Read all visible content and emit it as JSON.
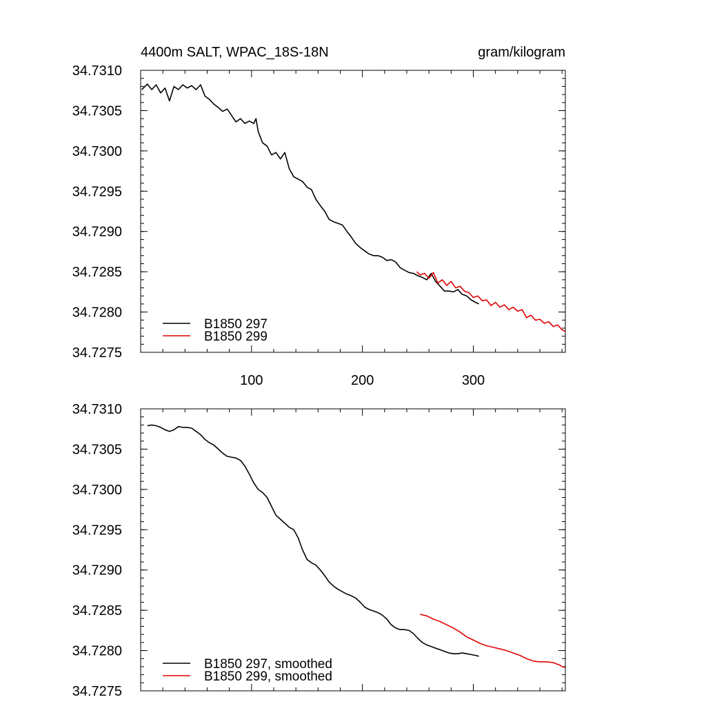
{
  "colors": {
    "series_297": "#000000",
    "series_299": "#e00000",
    "axis": "#000000",
    "background": "#ffffff"
  },
  "chart_data": [
    {
      "type": "line",
      "title": "4400m SALT, WPAC_18S-18N",
      "units": "gram/kilogram",
      "xlabel": "",
      "ylabel": "",
      "xlim": [
        0,
        383
      ],
      "ylim": [
        34.7275,
        34.731
      ],
      "xticks": [
        100,
        200,
        300
      ],
      "xtick_labels": [
        "100",
        "200",
        "300"
      ],
      "yticks": [
        34.7275,
        34.728,
        34.7285,
        34.729,
        34.7295,
        34.73,
        34.7305,
        34.731
      ],
      "ytick_labels": [
        "34.7275",
        "34.7280",
        "34.7285",
        "34.7290",
        "34.7295",
        "34.7300",
        "34.7305",
        "34.7310"
      ],
      "grid": false,
      "legend_position": "bottom-left",
      "series": [
        {
          "name": "B1850 297",
          "color": "#000000",
          "x": [
            1,
            6,
            10,
            14,
            18,
            22,
            26,
            30,
            34,
            38,
            42,
            46,
            50,
            54,
            58,
            62,
            66,
            70,
            74,
            78,
            82,
            86,
            90,
            94,
            98,
            102,
            104,
            106,
            110,
            114,
            118,
            122,
            126,
            130,
            134,
            138,
            142,
            146,
            150,
            154,
            158,
            162,
            166,
            170,
            174,
            178,
            182,
            186,
            190,
            194,
            198,
            202,
            206,
            210,
            214,
            218,
            222,
            226,
            230,
            234,
            238,
            242,
            246,
            250,
            254,
            258,
            262,
            266,
            270,
            274,
            278,
            282,
            286,
            290,
            294,
            298,
            302,
            305
          ],
          "y": [
            34.73076,
            34.73083,
            34.73076,
            34.73082,
            34.73072,
            34.73078,
            34.73062,
            34.7308,
            34.73076,
            34.73082,
            34.73078,
            34.73081,
            34.73076,
            34.73082,
            34.73068,
            34.73064,
            34.73058,
            34.73054,
            34.73049,
            34.73052,
            34.73044,
            34.73036,
            34.7304,
            34.73034,
            34.73037,
            34.73034,
            34.7304,
            34.73024,
            34.7301,
            34.73006,
            34.72995,
            34.72998,
            34.7299,
            34.72998,
            34.72978,
            34.72968,
            34.72965,
            34.72962,
            34.72955,
            34.72952,
            34.7294,
            34.72932,
            34.72925,
            34.72915,
            34.72912,
            34.7291,
            34.72908,
            34.729,
            34.72893,
            34.72885,
            34.7288,
            34.72876,
            34.72872,
            34.7287,
            34.7287,
            34.72868,
            34.72864,
            34.72865,
            34.72862,
            34.72855,
            34.72852,
            34.72849,
            34.72848,
            34.72845,
            34.72843,
            34.7284,
            34.72848,
            34.72838,
            34.72832,
            34.72826,
            34.72826,
            34.72825,
            34.72828,
            34.72822,
            34.7282,
            34.72815,
            34.72812,
            34.7281
          ]
        },
        {
          "name": "B1850 299",
          "color": "#e00000",
          "x": [
            249,
            252,
            256,
            260,
            264,
            268,
            272,
            276,
            280,
            284,
            288,
            292,
            296,
            300,
            304,
            308,
            312,
            316,
            320,
            324,
            328,
            332,
            336,
            340,
            344,
            348,
            352,
            356,
            360,
            364,
            368,
            372,
            376,
            380,
            383
          ],
          "y": [
            34.7285,
            34.72846,
            34.72848,
            34.72842,
            34.72849,
            34.72836,
            34.7284,
            34.72833,
            34.72838,
            34.7283,
            34.72832,
            34.72826,
            34.72824,
            34.72818,
            34.7282,
            34.72814,
            34.72815,
            34.72808,
            34.72812,
            34.72806,
            34.72809,
            34.72803,
            34.72806,
            34.72801,
            34.72803,
            34.72793,
            34.72796,
            34.7279,
            34.72791,
            34.72786,
            34.72788,
            34.72782,
            34.72784,
            34.72778,
            34.72776
          ]
        }
      ]
    },
    {
      "type": "line",
      "title": "",
      "xlabel": "",
      "ylabel": "",
      "xlim": [
        0,
        383
      ],
      "ylim": [
        34.7275,
        34.731
      ],
      "xticks": [
        100,
        200,
        300
      ],
      "xtick_labels": [],
      "yticks": [
        34.7275,
        34.728,
        34.7285,
        34.729,
        34.7295,
        34.73,
        34.7305,
        34.731
      ],
      "ytick_labels": [
        "34.7275",
        "34.7280",
        "34.7285",
        "34.7290",
        "34.7295",
        "34.7300",
        "34.7305",
        "34.7310"
      ],
      "grid": false,
      "legend_position": "bottom-left",
      "series": [
        {
          "name": "B1850 297, smoothed",
          "color": "#000000",
          "x": [
            6,
            10,
            14,
            18,
            22,
            26,
            30,
            34,
            38,
            42,
            46,
            50,
            54,
            58,
            62,
            66,
            70,
            74,
            78,
            82,
            86,
            90,
            94,
            98,
            102,
            106,
            110,
            114,
            118,
            122,
            126,
            130,
            134,
            138,
            142,
            146,
            150,
            154,
            158,
            162,
            166,
            170,
            174,
            178,
            182,
            186,
            190,
            194,
            198,
            202,
            206,
            210,
            214,
            218,
            222,
            226,
            230,
            234,
            238,
            242,
            246,
            250,
            254,
            258,
            262,
            266,
            270,
            274,
            278,
            282,
            286,
            290,
            294,
            298,
            302,
            305
          ],
          "y": [
            34.73079,
            34.7308,
            34.73079,
            34.73077,
            34.73074,
            34.73072,
            34.73074,
            34.73078,
            34.73077,
            34.73077,
            34.73076,
            34.73072,
            34.73068,
            34.73062,
            34.73058,
            34.73055,
            34.7305,
            34.73045,
            34.73041,
            34.7304,
            34.73039,
            34.73036,
            34.73029,
            34.73019,
            34.73008,
            34.73,
            34.72996,
            34.7299,
            34.72979,
            34.72968,
            34.72963,
            34.72958,
            34.72953,
            34.7295,
            34.7294,
            34.72925,
            34.72913,
            34.72909,
            34.72906,
            34.729,
            34.72893,
            34.72885,
            34.7288,
            34.72876,
            34.72873,
            34.7287,
            34.72868,
            34.72865,
            34.7286,
            34.72854,
            34.72851,
            34.72849,
            34.72847,
            34.72844,
            34.72839,
            34.72832,
            34.72828,
            34.72826,
            34.72826,
            34.72825,
            34.72821,
            34.72815,
            34.7281,
            34.72807,
            34.72805,
            34.72803,
            34.72801,
            34.72799,
            34.72797,
            34.72796,
            34.72796,
            34.72797,
            34.72796,
            34.72795,
            34.72794,
            34.72793
          ]
        },
        {
          "name": "B1850 299, smoothed",
          "color": "#e00000",
          "x": [
            252,
            258,
            264,
            270,
            276,
            282,
            288,
            294,
            300,
            306,
            312,
            318,
            324,
            330,
            336,
            342,
            348,
            354,
            360,
            366,
            372,
            378,
            380,
            383
          ],
          "y": [
            34.72845,
            34.72843,
            34.72839,
            34.72836,
            34.72832,
            34.72828,
            34.72823,
            34.72817,
            34.72813,
            34.72809,
            34.72806,
            34.72804,
            34.72802,
            34.728,
            34.72797,
            34.72794,
            34.7279,
            34.72787,
            34.72786,
            34.72786,
            34.72785,
            34.72782,
            34.7278,
            34.72779
          ]
        }
      ]
    }
  ]
}
